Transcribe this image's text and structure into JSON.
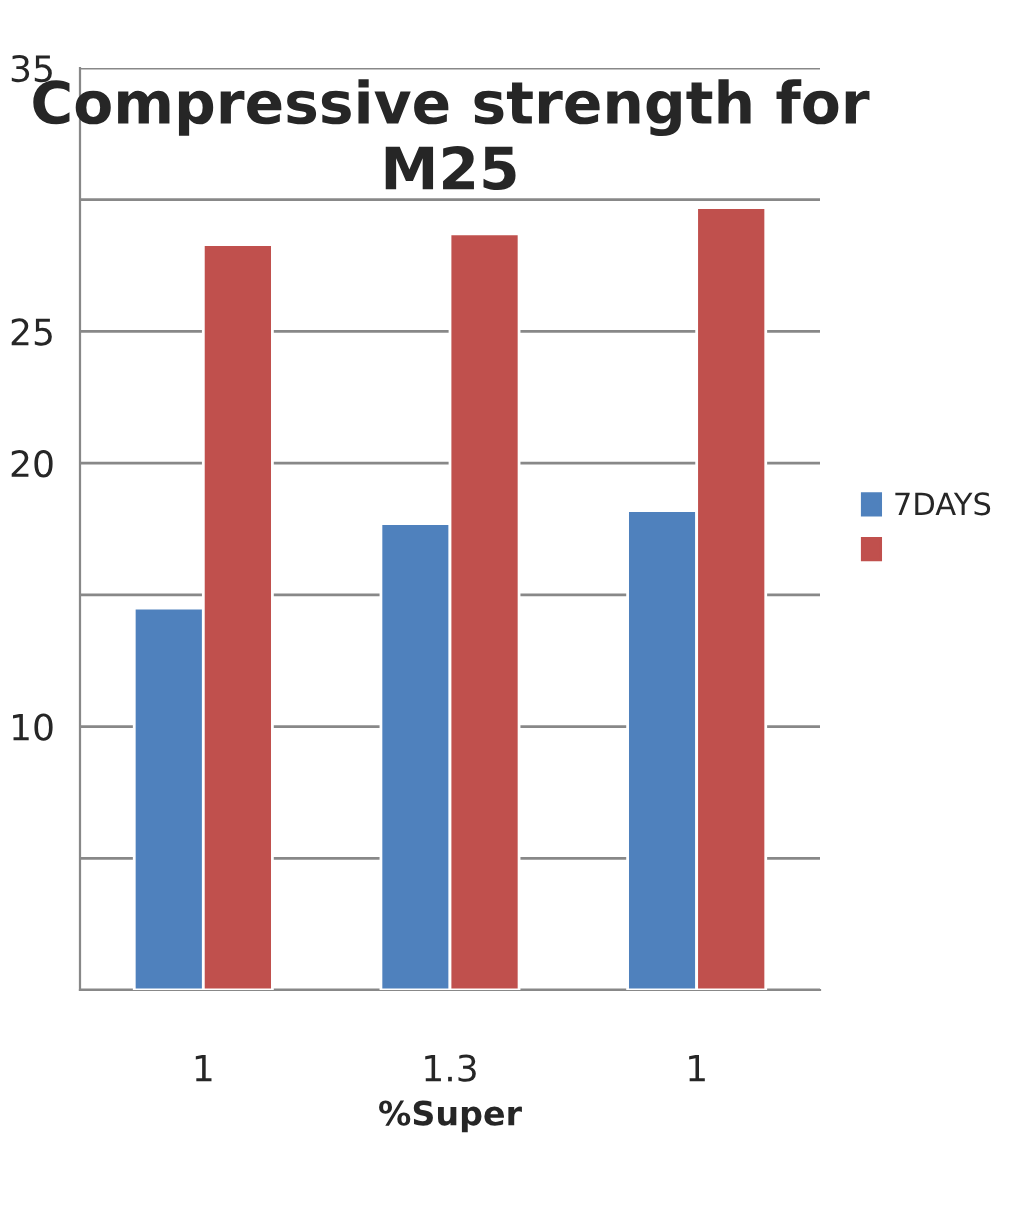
{
  "chart_data": {
    "type": "bar",
    "title": "Compressive strength for M25",
    "xlabel": "%Super",
    "categories": [
      "1",
      "1.3",
      "1"
    ],
    "series": [
      {
        "name": "7DAYS",
        "color": "#4f81bd",
        "values": [
          14.5,
          17.7,
          18.2
        ]
      },
      {
        "color": "#c0504d",
        "values": [
          28.3,
          28.7,
          29.7
        ]
      }
    ],
    "ylim": [
      0,
      35
    ],
    "yticks": [
      {
        "value": 0,
        "label": null
      },
      {
        "value": 5,
        "label": null
      },
      {
        "value": 10,
        "label": "10"
      },
      {
        "value": 15,
        "label": null
      },
      {
        "value": 20,
        "label": "20"
      },
      {
        "value": 25,
        "label": "25"
      },
      {
        "value": 30,
        "label": null
      },
      {
        "value": 35,
        "label": "35"
      }
    ],
    "grid": "y",
    "legend": "right"
  }
}
